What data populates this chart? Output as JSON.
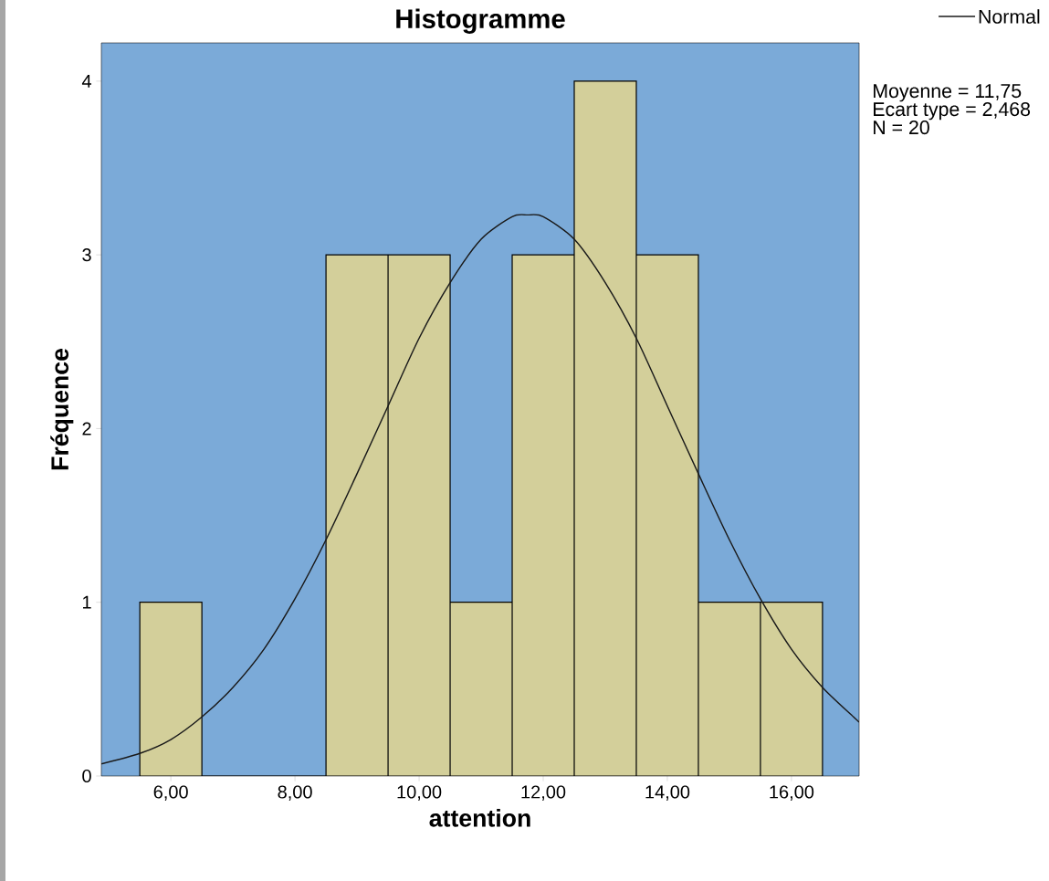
{
  "chart_data": {
    "type": "histogram",
    "title": "Histogramme",
    "xlabel": "attention",
    "ylabel": "Fréquence",
    "bins": [
      5.5,
      6.5,
      7.5,
      8.5,
      9.5,
      10.5,
      11.5,
      12.5,
      13.5,
      14.5,
      15.5,
      16.5
    ],
    "values": [
      1,
      0,
      0,
      3,
      3,
      1,
      3,
      4,
      3,
      1,
      1
    ],
    "color": "#d3cf9a",
    "series": [
      {
        "name": "Normal",
        "type": "line",
        "color": "#1a1a1a",
        "x": [
          4.88,
          5.5,
          6,
          6.5,
          7,
          7.5,
          8,
          8.5,
          9,
          9.5,
          10,
          10.5,
          11,
          11.5,
          11.75,
          12,
          12.5,
          13,
          13.5,
          14,
          14.5,
          15,
          15.5,
          16,
          16.5,
          17,
          17.09
        ],
        "values": [
          0.07,
          0.13,
          0.21,
          0.34,
          0.51,
          0.73,
          1.02,
          1.36,
          1.74,
          2.13,
          2.52,
          2.84,
          3.09,
          3.22,
          3.23,
          3.22,
          3.09,
          2.84,
          2.52,
          2.13,
          1.74,
          1.36,
          1.02,
          0.73,
          0.51,
          0.34,
          0.31
        ]
      }
    ],
    "xlim": [
      4.88,
      17.09
    ],
    "ylim": [
      0,
      4.22
    ],
    "xticks": [
      {
        "value": 6,
        "label": "6,00"
      },
      {
        "value": 8,
        "label": "8,00"
      },
      {
        "value": 10,
        "label": "10,00"
      },
      {
        "value": 12,
        "label": "12,00"
      },
      {
        "value": 14,
        "label": "14,00"
      },
      {
        "value": 16,
        "label": "16,00"
      }
    ],
    "yticks": [
      0,
      1,
      2,
      3,
      4
    ],
    "annotations": [
      "Moyenne = 11,75",
      "Ecart type = 2,468",
      "N = 20"
    ],
    "legend": "top right",
    "marker": "none",
    "line_style": "solid",
    "grid": false
  }
}
